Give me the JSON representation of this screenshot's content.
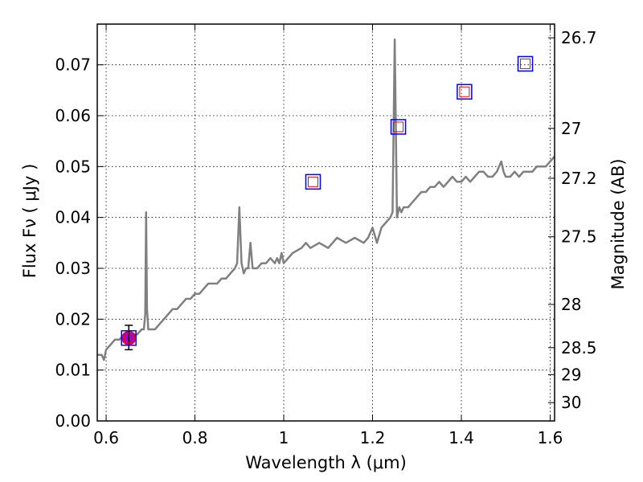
{
  "chart_data": {
    "type": "line",
    "xlabel": "Wavelength  λ (μm)",
    "ylabel_left": "Flux  Fν  ( μJy )",
    "ylabel_right": "Magnitude (AB)",
    "xlim": [
      0.58,
      1.61
    ],
    "ylim": [
      0.0,
      0.078
    ],
    "grid": true,
    "x_ticks": [
      {
        "value": 0.6,
        "label": "0.6"
      },
      {
        "value": 0.8,
        "label": "0.8"
      },
      {
        "value": 1.0,
        "label": "1"
      },
      {
        "value": 1.2,
        "label": "1.2"
      },
      {
        "value": 1.4,
        "label": "1.4"
      },
      {
        "value": 1.6,
        "label": "1.6"
      }
    ],
    "y_ticks": [
      {
        "value": 0.0,
        "label": "0.00"
      },
      {
        "value": 0.01,
        "label": "0.01"
      },
      {
        "value": 0.02,
        "label": "0.02"
      },
      {
        "value": 0.03,
        "label": "0.03"
      },
      {
        "value": 0.04,
        "label": "0.04"
      },
      {
        "value": 0.05,
        "label": "0.05"
      },
      {
        "value": 0.06,
        "label": "0.06"
      },
      {
        "value": 0.07,
        "label": "0.07"
      }
    ],
    "right_ticks": [
      {
        "flux": 0.0753,
        "label": "26.7"
      },
      {
        "flux": 0.0575,
        "label": "27"
      },
      {
        "flux": 0.0477,
        "label": "27.2"
      },
      {
        "flux": 0.0362,
        "label": "27.5"
      },
      {
        "flux": 0.0229,
        "label": "28"
      },
      {
        "flux": 0.0144,
        "label": "28.5"
      },
      {
        "flux": 0.0091,
        "label": "29"
      },
      {
        "flux": 0.0036,
        "label": "30"
      }
    ],
    "spectrum": {
      "color": "#808080",
      "x": [
        0.58,
        0.59,
        0.595,
        0.6,
        0.61,
        0.62,
        0.63,
        0.64,
        0.65,
        0.66,
        0.67,
        0.68,
        0.685,
        0.688,
        0.69,
        0.692,
        0.695,
        0.7,
        0.71,
        0.72,
        0.73,
        0.74,
        0.75,
        0.76,
        0.77,
        0.78,
        0.79,
        0.8,
        0.81,
        0.82,
        0.83,
        0.84,
        0.85,
        0.86,
        0.87,
        0.88,
        0.89,
        0.895,
        0.9,
        0.905,
        0.91,
        0.915,
        0.92,
        0.925,
        0.93,
        0.94,
        0.95,
        0.96,
        0.97,
        0.98,
        0.985,
        0.99,
        0.995,
        1.0,
        1.02,
        1.04,
        1.05,
        1.06,
        1.08,
        1.1,
        1.12,
        1.14,
        1.16,
        1.18,
        1.19,
        1.2,
        1.21,
        1.22,
        1.23,
        1.24,
        1.245,
        1.25,
        1.255,
        1.26,
        1.265,
        1.27,
        1.28,
        1.29,
        1.3,
        1.31,
        1.32,
        1.33,
        1.34,
        1.35,
        1.36,
        1.37,
        1.38,
        1.39,
        1.4,
        1.41,
        1.42,
        1.43,
        1.44,
        1.45,
        1.46,
        1.47,
        1.48,
        1.485,
        1.49,
        1.495,
        1.5,
        1.51,
        1.52,
        1.53,
        1.54,
        1.55,
        1.56,
        1.57,
        1.58,
        1.59,
        1.6,
        1.61
      ],
      "y": [
        0.013,
        0.013,
        0.012,
        0.014,
        0.015,
        0.016,
        0.016,
        0.017,
        0.016,
        0.017,
        0.017,
        0.018,
        0.018,
        0.021,
        0.041,
        0.022,
        0.018,
        0.018,
        0.018,
        0.019,
        0.02,
        0.021,
        0.022,
        0.022,
        0.023,
        0.024,
        0.024,
        0.025,
        0.025,
        0.026,
        0.027,
        0.027,
        0.027,
        0.028,
        0.028,
        0.029,
        0.03,
        0.031,
        0.042,
        0.031,
        0.029,
        0.03,
        0.03,
        0.035,
        0.03,
        0.03,
        0.031,
        0.031,
        0.032,
        0.031,
        0.032,
        0.031,
        0.033,
        0.031,
        0.033,
        0.034,
        0.035,
        0.034,
        0.035,
        0.034,
        0.036,
        0.035,
        0.036,
        0.035,
        0.036,
        0.038,
        0.035,
        0.038,
        0.039,
        0.04,
        0.041,
        0.075,
        0.04,
        0.042,
        0.041,
        0.042,
        0.042,
        0.043,
        0.044,
        0.045,
        0.045,
        0.046,
        0.046,
        0.047,
        0.046,
        0.047,
        0.048,
        0.047,
        0.047,
        0.048,
        0.047,
        0.048,
        0.049,
        0.049,
        0.048,
        0.048,
        0.049,
        0.05,
        0.051,
        0.049,
        0.048,
        0.048,
        0.049,
        0.048,
        0.049,
        0.049,
        0.049,
        0.05,
        0.05,
        0.05,
        0.051,
        0.052
      ]
    },
    "squares": [
      {
        "x": 0.651,
        "y": 0.0163
      },
      {
        "x": 1.066,
        "y": 0.047
      },
      {
        "x": 1.258,
        "y": 0.0578
      },
      {
        "x": 1.407,
        "y": 0.0647
      },
      {
        "x": 1.544,
        "y": 0.0702
      }
    ],
    "square_colors": {
      "outer": "#0000ff",
      "inner": "#ff0000"
    },
    "observed_point": {
      "x": 0.651,
      "y": 0.0163,
      "y_err_low": 0.014,
      "y_err_high": 0.0188,
      "color": "#aa00cc"
    }
  }
}
